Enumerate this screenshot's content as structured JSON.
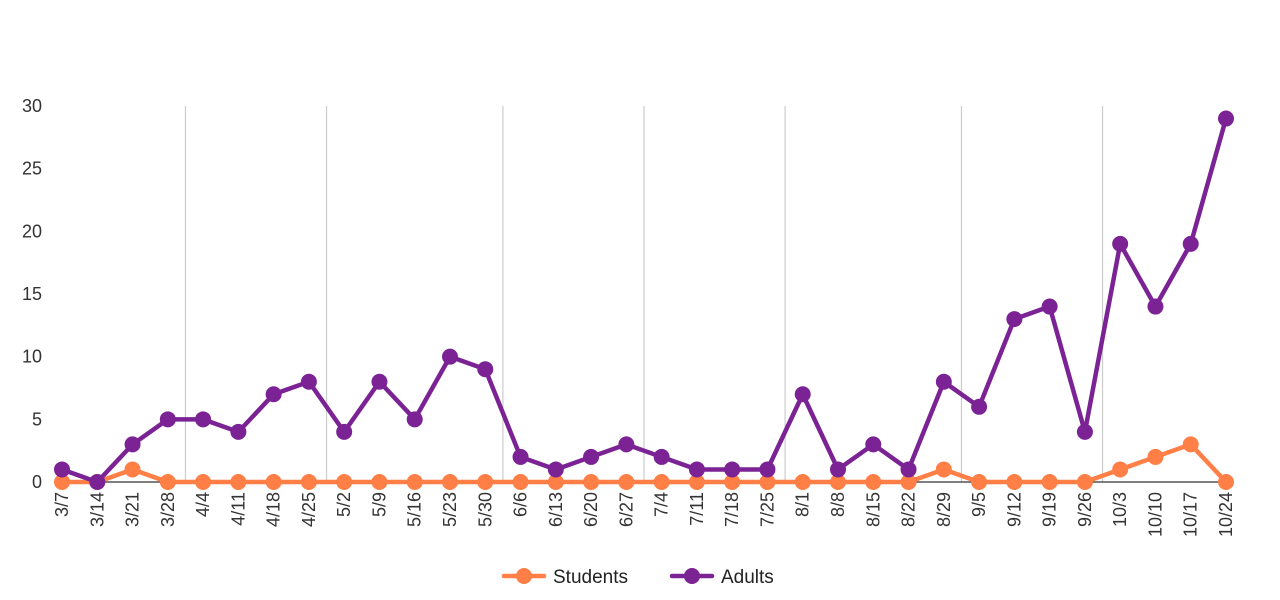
{
  "chart_data": {
    "type": "line",
    "title": "",
    "xlabel": "",
    "ylabel": "",
    "ylim": [
      0,
      30
    ],
    "yticks": [
      0,
      5,
      10,
      15,
      20,
      25,
      30
    ],
    "categories": [
      "3/7",
      "3/14",
      "3/21",
      "3/28",
      "4/4",
      "4/11",
      "4/18",
      "4/25",
      "5/2",
      "5/9",
      "5/16",
      "5/23",
      "5/30",
      "6/6",
      "6/13",
      "6/20",
      "6/27",
      "7/4",
      "7/11",
      "7/18",
      "7/25",
      "8/1",
      "8/8",
      "8/15",
      "8/22",
      "8/29",
      "9/5",
      "9/12",
      "9/19",
      "9/26",
      "10/3",
      "10/10",
      "10/17",
      "10/24"
    ],
    "month_gridlines_at": [
      "4/4",
      "5/2",
      "6/6",
      "7/4",
      "8/1",
      "9/5",
      "10/3"
    ],
    "grid": true,
    "legend_position": "bottom-center",
    "series": [
      {
        "name": "Students",
        "color": "#FF7F46",
        "values": [
          0,
          0,
          1,
          0,
          0,
          0,
          0,
          0,
          0,
          0,
          0,
          0,
          0,
          0,
          0,
          0,
          0,
          0,
          0,
          0,
          0,
          0,
          0,
          0,
          0,
          1,
          0,
          0,
          0,
          0,
          1,
          2,
          3,
          0
        ]
      },
      {
        "name": "Adults",
        "color": "#7B2394",
        "values": [
          1,
          0,
          3,
          5,
          5,
          4,
          7,
          8,
          4,
          8,
          5,
          10,
          9,
          2,
          1,
          2,
          3,
          2,
          1,
          1,
          1,
          7,
          1,
          3,
          1,
          8,
          6,
          13,
          14,
          4,
          19,
          14,
          19,
          29
        ]
      }
    ]
  }
}
